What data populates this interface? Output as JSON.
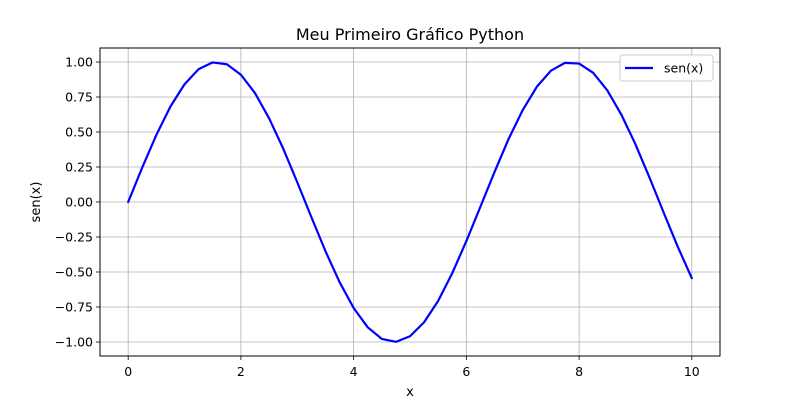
{
  "chart_data": {
    "type": "line",
    "title": "Meu Primeiro Gráfico Python",
    "xlabel": "x",
    "ylabel": "sen(x)",
    "xlim": [
      -0.5,
      10.5
    ],
    "ylim": [
      -1.1,
      1.1
    ],
    "x_ticks": [
      0,
      2,
      4,
      6,
      8,
      10
    ],
    "y_ticks": [
      -1.0,
      -0.75,
      -0.5,
      -0.25,
      0.0,
      0.25,
      0.5,
      0.75,
      1.0
    ],
    "x_tick_labels": [
      "0",
      "2",
      "4",
      "6",
      "8",
      "10"
    ],
    "y_tick_labels": [
      "−1.00",
      "−0.75",
      "−0.50",
      "−0.25",
      "0.00",
      "0.25",
      "0.50",
      "0.75",
      "1.00"
    ],
    "grid": true,
    "legend_position": "top-right",
    "series": [
      {
        "name": "sen(x)",
        "color": "#0000ff",
        "x": [
          0,
          0.25,
          0.5,
          0.75,
          1.0,
          1.25,
          1.5,
          1.75,
          2.0,
          2.25,
          2.5,
          2.75,
          3.0,
          3.25,
          3.5,
          3.75,
          4.0,
          4.25,
          4.5,
          4.75,
          5.0,
          5.25,
          5.5,
          5.75,
          6.0,
          6.25,
          6.5,
          6.75,
          7.0,
          7.25,
          7.5,
          7.75,
          8.0,
          8.25,
          8.5,
          8.75,
          9.0,
          9.25,
          9.5,
          9.75,
          10.0
        ],
        "y": [
          0.0,
          0.247,
          0.479,
          0.682,
          0.841,
          0.949,
          0.997,
          0.984,
          0.909,
          0.778,
          0.598,
          0.382,
          0.141,
          -0.108,
          -0.351,
          -0.572,
          -0.757,
          -0.895,
          -0.978,
          -0.999,
          -0.959,
          -0.859,
          -0.706,
          -0.508,
          -0.279,
          -0.033,
          0.215,
          0.451,
          0.657,
          0.823,
          0.938,
          0.994,
          0.989,
          0.923,
          0.798,
          0.624,
          0.412,
          0.174,
          -0.075,
          -0.319,
          -0.544
        ]
      }
    ]
  }
}
